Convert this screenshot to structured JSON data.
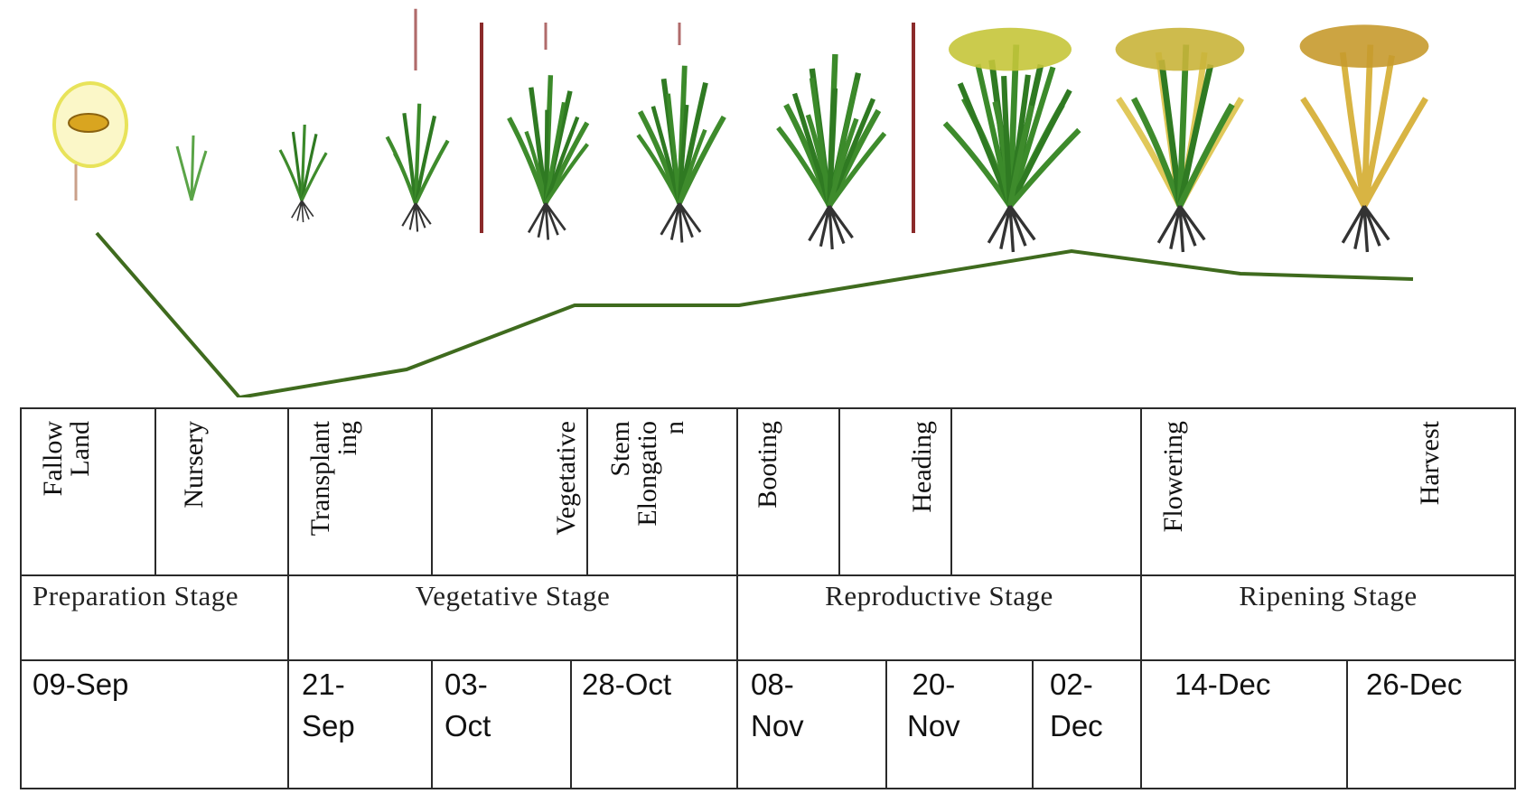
{
  "diagram": {
    "growth_curve_color": "#3f6b1e",
    "separator_color": "#8b2a2a",
    "plant_icons": [
      "seed-icon",
      "seedling-icon",
      "young-plant-icon",
      "tillering-plant-icon",
      "vegetative-plant-icon",
      "vegetative-plant-icon",
      "stem-elongation-plant-icon",
      "heading-plant-icon",
      "flowering-plant-icon",
      "ripening-plant-icon"
    ],
    "growth_stages": [
      {
        "name": "Fallow\nLand"
      },
      {
        "name": "Nursery"
      },
      {
        "name": "Transplant\ning"
      },
      {
        "name": "Vegetative"
      },
      {
        "name": "Stem\nElongatio\nn"
      },
      {
        "name": "Booting"
      },
      {
        "name": "Heading"
      },
      {
        "name": "Flowering"
      },
      {
        "name": "Harvest"
      }
    ],
    "phases": [
      {
        "name": "Preparation Stage"
      },
      {
        "name": "Vegetative Stage"
      },
      {
        "name": "Reproductive Stage"
      },
      {
        "name": "Ripening Stage"
      }
    ],
    "dates": [
      "09-Sep",
      "21-\nSep",
      "03-\nOct",
      "28-Oct",
      "08-\nNov",
      "20-\nNov",
      "02-\nDec",
      "14-Dec",
      "26-Dec"
    ]
  }
}
